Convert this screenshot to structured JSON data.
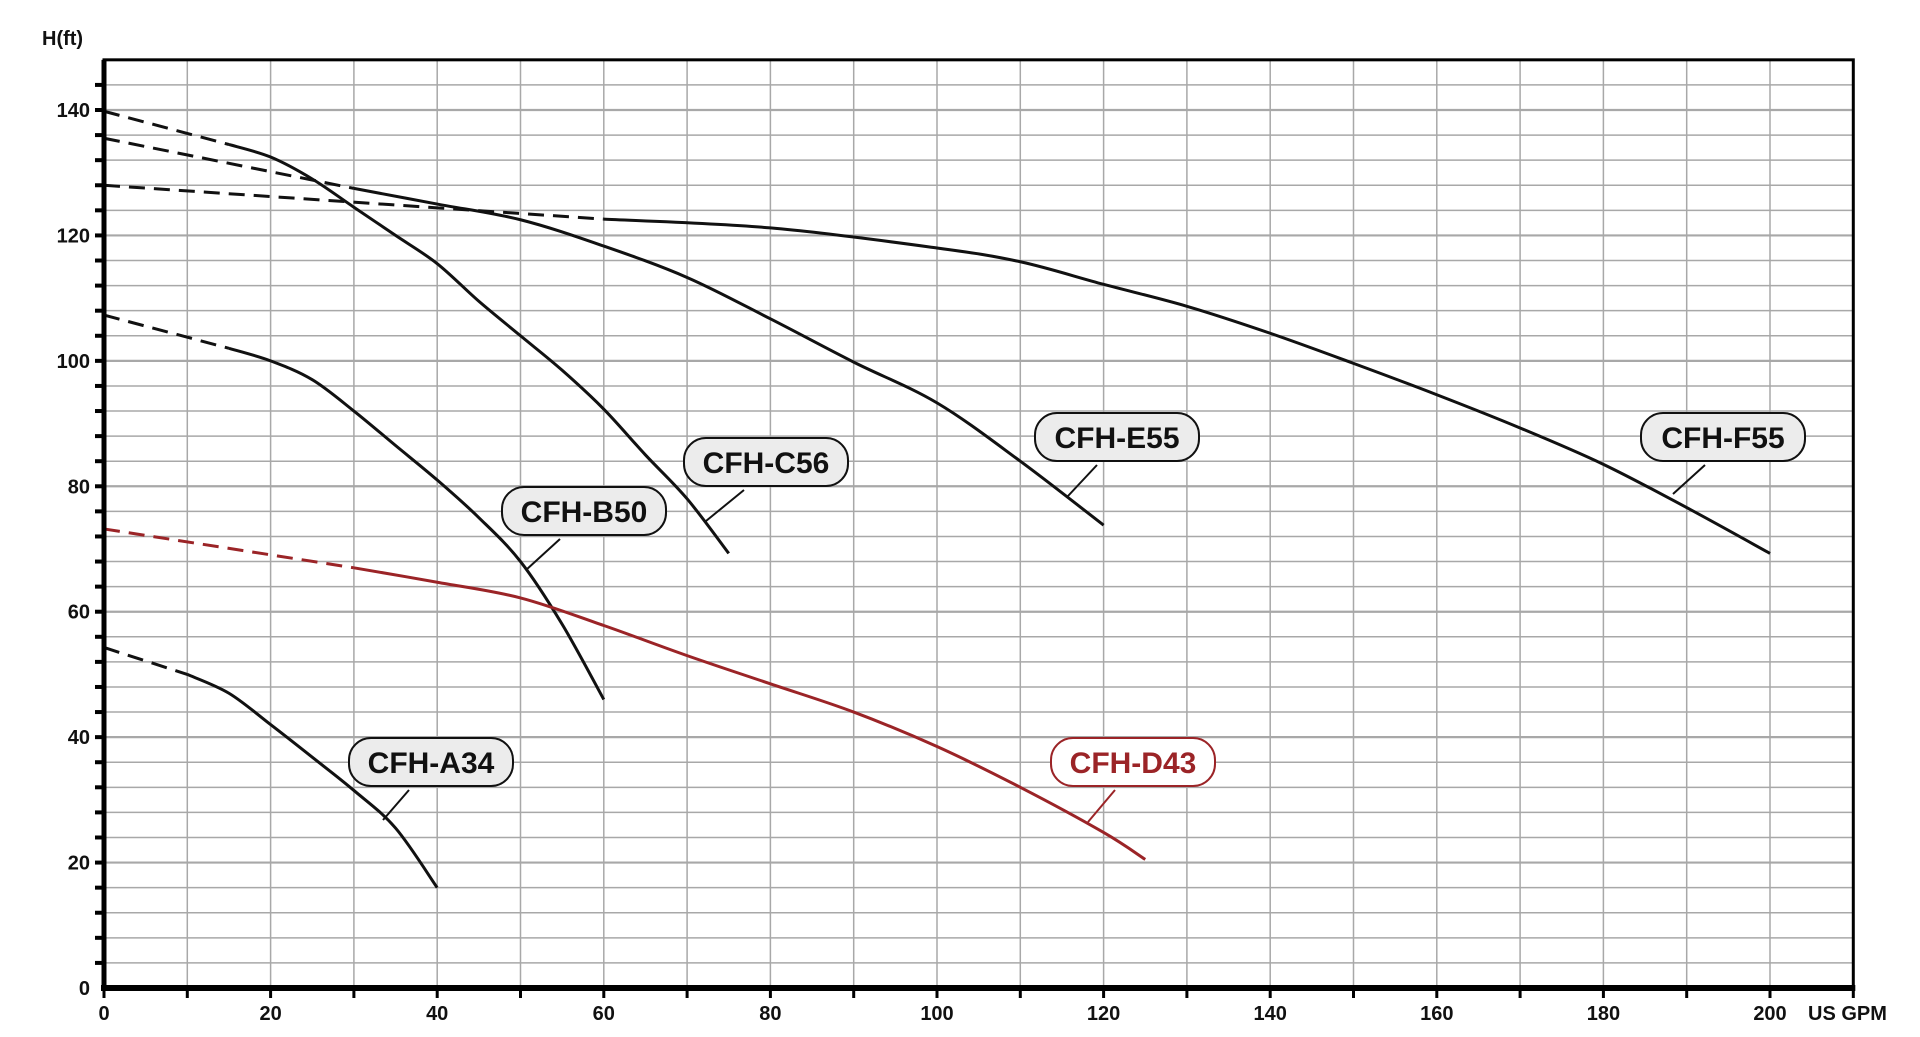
{
  "chart_data": {
    "type": "line",
    "title": "",
    "xlabel": "US GPM",
    "ylabel": "H(ft)",
    "xlim": [
      0,
      210
    ],
    "ylim": [
      0,
      148
    ],
    "x_ticks": [
      0,
      20,
      40,
      60,
      80,
      100,
      120,
      140,
      160,
      180,
      200
    ],
    "y_ticks": [
      0,
      20,
      40,
      60,
      80,
      100,
      120,
      140
    ],
    "grid": true,
    "legend": "inline labels",
    "colors": {
      "default": "#111111",
      "highlight": "#9b2427",
      "grid": "#a8a8a8",
      "label_fill": "#ececec"
    },
    "series": [
      {
        "name": "CFH-A34",
        "color": "#111111",
        "dashed": [
          [
            0,
            54.3
          ],
          [
            10,
            50
          ]
        ],
        "x": [
          10,
          15,
          20,
          25,
          30,
          35,
          40
        ],
        "y": [
          50,
          47,
          42,
          36.8,
          31.5,
          25.5,
          16
        ]
      },
      {
        "name": "CFH-B50",
        "color": "#111111",
        "dashed": [
          [
            0,
            107.3
          ],
          [
            15,
            102
          ]
        ],
        "x": [
          15,
          20,
          25,
          30,
          35,
          40,
          45,
          50,
          55,
          60
        ],
        "y": [
          102,
          100,
          97,
          92,
          86.5,
          81,
          75,
          68,
          58,
          46
        ]
      },
      {
        "name": "CFH-C56",
        "color": "#111111",
        "dashed": [
          [
            0,
            139.8
          ],
          [
            15,
            134.5
          ]
        ],
        "x": [
          15,
          20,
          25,
          30,
          35,
          40,
          45,
          50,
          55,
          60,
          65,
          70,
          75
        ],
        "y": [
          134.5,
          132.5,
          129,
          124.5,
          120,
          115.5,
          109.5,
          104,
          98.5,
          92.3,
          85,
          78,
          69.3
        ]
      },
      {
        "name": "CFH-D43",
        "color": "#9b2427",
        "dashed": [
          [
            0,
            73.2
          ],
          [
            30,
            67
          ]
        ],
        "x": [
          30,
          40,
          50,
          60,
          70,
          80,
          90,
          100,
          110,
          120,
          125
        ],
        "y": [
          67,
          64.7,
          62.2,
          57.8,
          53,
          48.5,
          44,
          38.5,
          32,
          24.8,
          20.5
        ]
      },
      {
        "name": "CFH-E55",
        "color": "#111111",
        "dashed": [
          [
            0,
            135.5
          ],
          [
            30,
            127.5
          ]
        ],
        "x": [
          30,
          40,
          50,
          60,
          70,
          80,
          90,
          100,
          110,
          120
        ],
        "y": [
          127.5,
          125,
          122.5,
          118.3,
          113.3,
          106.7,
          99.8,
          93.3,
          84,
          73.8
        ]
      },
      {
        "name": "CFH-F55",
        "color": "#111111",
        "dashed": [
          [
            0,
            128
          ],
          [
            60,
            122.6
          ]
        ],
        "x": [
          60,
          80,
          100,
          110,
          120,
          130,
          140,
          150,
          160,
          170,
          180,
          190,
          200
        ],
        "y": [
          122.6,
          121.2,
          118,
          115.8,
          112.2,
          108.7,
          104.4,
          99.6,
          94.6,
          89.3,
          83.5,
          76.6,
          69.3
        ]
      }
    ]
  }
}
